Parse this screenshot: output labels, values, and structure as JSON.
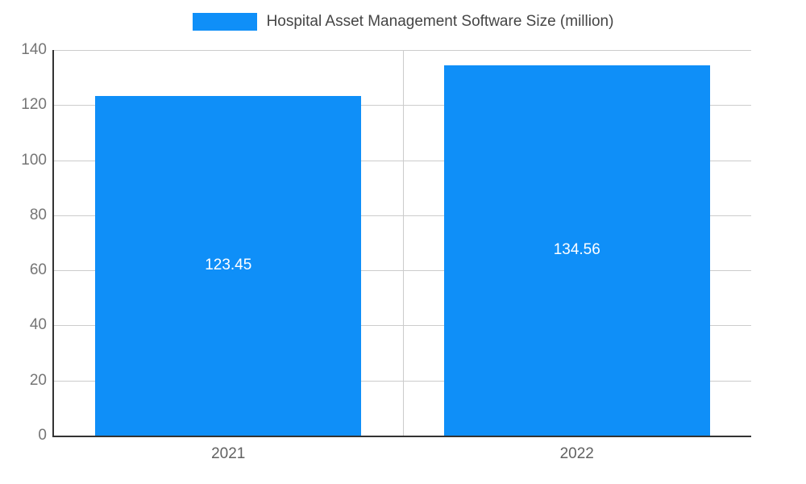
{
  "chart_data": {
    "type": "bar",
    "title": "Hospital Asset Management Software Size (million)",
    "categories": [
      "2021",
      "2022"
    ],
    "values": [
      123.45,
      134.56
    ],
    "value_labels": [
      "123.45",
      "134.56"
    ],
    "xlabel": "",
    "ylabel": "",
    "ylim": [
      0,
      140
    ],
    "yticks": [
      0,
      20,
      40,
      60,
      80,
      100,
      120,
      140
    ],
    "grid": true,
    "legend_position": "top",
    "bar_color": "#0f8ff8",
    "bar_label_color": "#ffffff",
    "grid_color": "#cccccc",
    "axis_line_color": "#333333",
    "tick_label_color": "#757575"
  }
}
